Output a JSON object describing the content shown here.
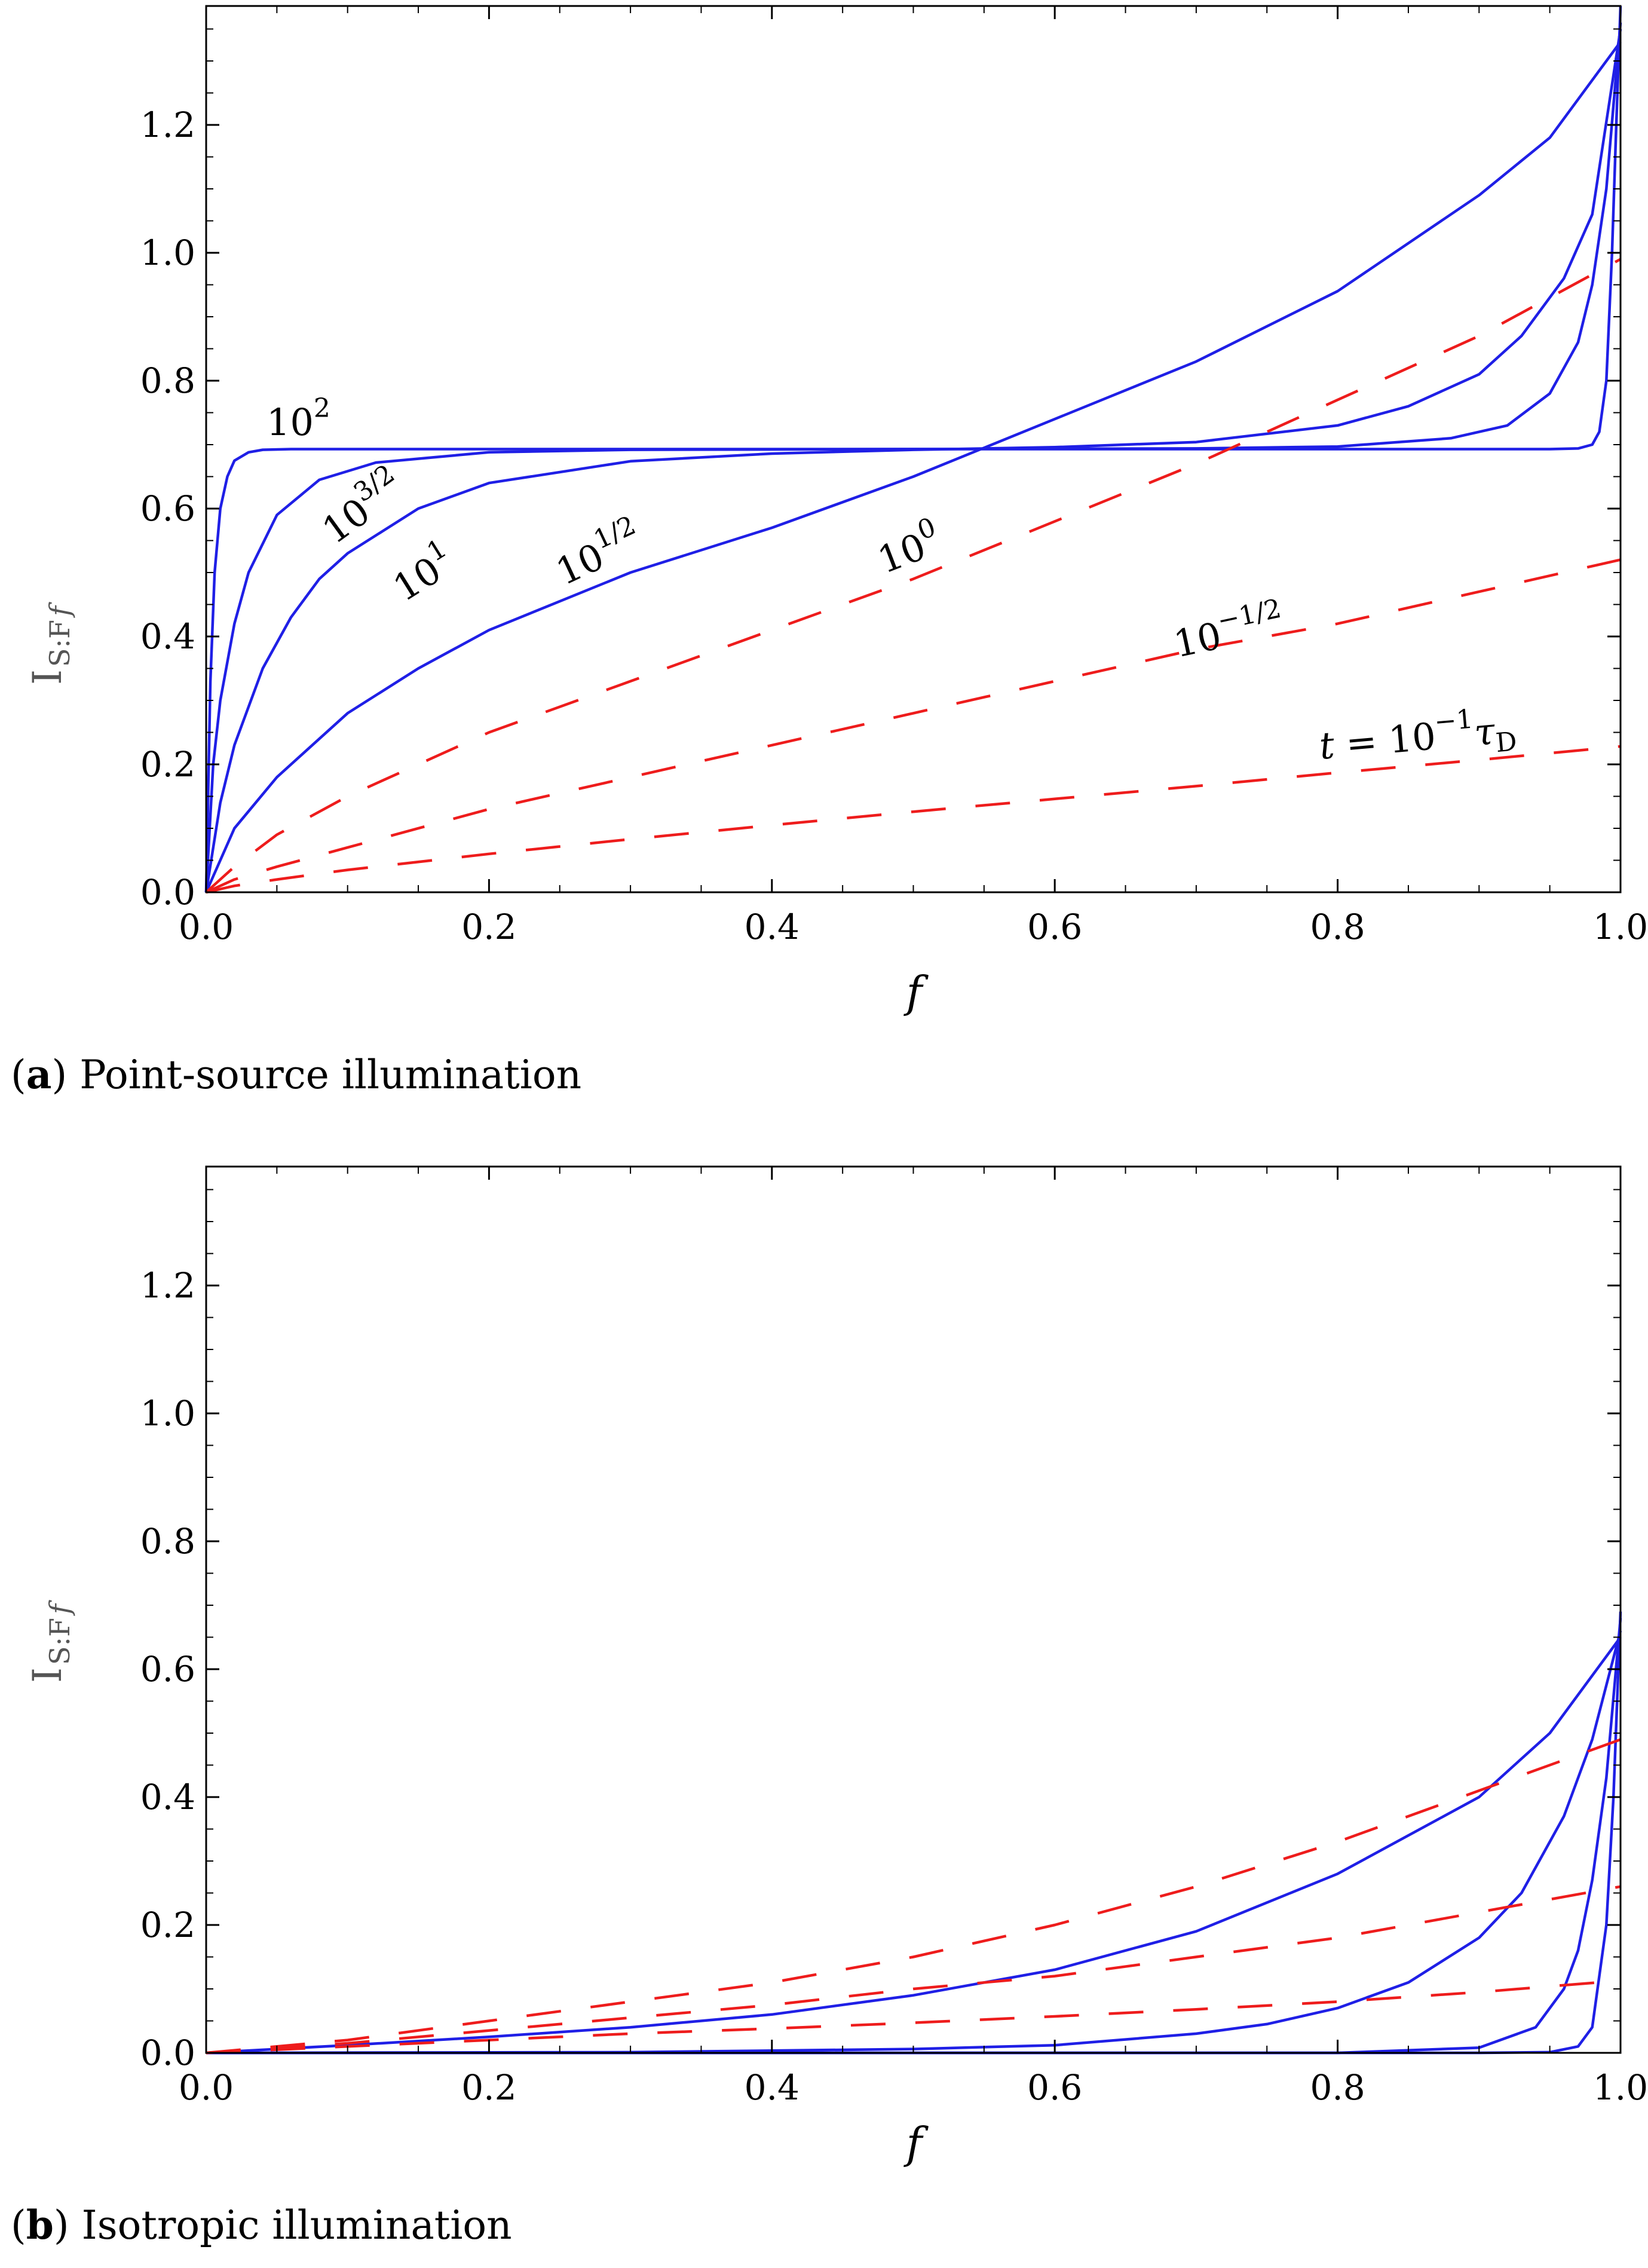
{
  "colors": {
    "blue_series": "#1f1fe6",
    "red_series": "#ee1c1c",
    "axis": "#000000"
  },
  "chart_data": [
    {
      "type": "line",
      "caption": {
        "open": "(",
        "label": "a",
        "close": ")",
        "text": " Point-source illumination"
      },
      "xlabel": "f",
      "ylabel": {
        "main": "I",
        "sub": "S:F",
        "subvar": "f"
      },
      "xlim": [
        0.0,
        1.0
      ],
      "ylim": [
        0.0,
        1.386
      ],
      "xticks": [
        "0.0",
        "0.2",
        "0.4",
        "0.6",
        "0.8",
        "1.0"
      ],
      "yticks": [
        "0.0",
        "0.2",
        "0.4",
        "0.6",
        "0.8",
        "1.0",
        "1.2"
      ],
      "series": [
        {
          "name": "t = 10^2 τD",
          "style": "solid",
          "color": "blue",
          "x": [
            0,
            0.003,
            0.006,
            0.01,
            0.015,
            0.02,
            0.03,
            0.04,
            0.06,
            0.1,
            0.5,
            0.9,
            0.95,
            0.97,
            0.98,
            0.985,
            0.99,
            0.994,
            0.997,
            1.0
          ],
          "y": [
            0,
            0.33,
            0.5,
            0.6,
            0.65,
            0.675,
            0.688,
            0.692,
            0.693,
            0.693,
            0.693,
            0.693,
            0.693,
            0.694,
            0.7,
            0.72,
            0.8,
            1.0,
            1.2,
            1.386
          ]
        },
        {
          "name": "t = 10^(3/2) τD",
          "style": "solid",
          "color": "blue",
          "x": [
            0,
            0.005,
            0.01,
            0.02,
            0.03,
            0.05,
            0.08,
            0.12,
            0.2,
            0.3,
            0.5,
            0.7,
            0.8,
            0.88,
            0.92,
            0.95,
            0.97,
            0.98,
            0.99,
            1.0
          ],
          "y": [
            0,
            0.2,
            0.3,
            0.42,
            0.5,
            0.59,
            0.645,
            0.672,
            0.688,
            0.692,
            0.693,
            0.694,
            0.697,
            0.71,
            0.73,
            0.78,
            0.86,
            0.95,
            1.1,
            1.36
          ]
        },
        {
          "name": "t = 10^1 τD",
          "style": "solid",
          "color": "blue",
          "x": [
            0,
            0.01,
            0.02,
            0.04,
            0.06,
            0.08,
            0.1,
            0.15,
            0.2,
            0.3,
            0.4,
            0.5,
            0.6,
            0.7,
            0.8,
            0.85,
            0.9,
            0.93,
            0.96,
            0.98,
            1.0
          ],
          "y": [
            0,
            0.14,
            0.23,
            0.35,
            0.43,
            0.49,
            0.53,
            0.6,
            0.64,
            0.674,
            0.686,
            0.692,
            0.696,
            0.704,
            0.73,
            0.76,
            0.81,
            0.87,
            0.96,
            1.06,
            1.35
          ]
        },
        {
          "name": "t = 10^(1/2) τD",
          "style": "solid",
          "color": "blue",
          "x": [
            0,
            0.02,
            0.05,
            0.1,
            0.15,
            0.2,
            0.3,
            0.4,
            0.5,
            0.6,
            0.7,
            0.8,
            0.9,
            0.95,
            1.0
          ],
          "y": [
            0,
            0.1,
            0.18,
            0.28,
            0.35,
            0.41,
            0.5,
            0.57,
            0.65,
            0.74,
            0.83,
            0.94,
            1.09,
            1.18,
            1.33
          ]
        },
        {
          "name": "t = 10^0 τD",
          "style": "dashed",
          "color": "red",
          "x": [
            0,
            0.02,
            0.05,
            0.1,
            0.2,
            0.3,
            0.4,
            0.5,
            0.6,
            0.7,
            0.8,
            0.9,
            1.0
          ],
          "y": [
            0,
            0.04,
            0.09,
            0.15,
            0.25,
            0.33,
            0.41,
            0.49,
            0.58,
            0.67,
            0.77,
            0.87,
            0.99
          ]
        },
        {
          "name": "t = 10^(-1/2) τD",
          "style": "dashed",
          "color": "red",
          "x": [
            0,
            0.02,
            0.05,
            0.1,
            0.2,
            0.3,
            0.4,
            0.5,
            0.6,
            0.7,
            0.8,
            0.9,
            1.0
          ],
          "y": [
            0,
            0.02,
            0.04,
            0.07,
            0.13,
            0.18,
            0.23,
            0.28,
            0.33,
            0.38,
            0.42,
            0.47,
            0.52
          ]
        },
        {
          "name": "t = 10^-1 τD",
          "style": "dashed",
          "color": "red",
          "x": [
            0,
            0.02,
            0.05,
            0.1,
            0.2,
            0.3,
            0.4,
            0.5,
            0.6,
            0.7,
            0.8,
            0.9,
            1.0
          ],
          "y": [
            0,
            0.01,
            0.02,
            0.035,
            0.06,
            0.083,
            0.105,
            0.126,
            0.146,
            0.166,
            0.187,
            0.207,
            0.228
          ]
        }
      ],
      "annotations": [
        {
          "base": "10",
          "sup": "2"
        },
        {
          "base": "10",
          "sup": "3/2"
        },
        {
          "base": "10",
          "sup": "1"
        },
        {
          "base": "10",
          "sup": "1/2"
        },
        {
          "base": "10",
          "sup": "0"
        },
        {
          "base": "10",
          "sup": "−1/2"
        },
        {
          "pre": "t",
          "eq": " = 10",
          "sup": "−1",
          "tau": "τ",
          "tausub": "D"
        }
      ]
    },
    {
      "type": "line",
      "caption": {
        "open": "(",
        "label": "b",
        "close": ")",
        "text": " Isotropic illumination"
      },
      "xlabel": "f",
      "ylabel": {
        "main": "I",
        "sub": "S:F",
        "subvar": "f"
      },
      "xlim": [
        0.0,
        1.0
      ],
      "ylim": [
        0.0,
        1.386
      ],
      "xticks": [
        "0.0",
        "0.2",
        "0.4",
        "0.6",
        "0.8",
        "1.0"
      ],
      "yticks": [
        "0.0",
        "0.2",
        "0.4",
        "0.6",
        "0.8",
        "1.0",
        "1.2"
      ],
      "series": [
        {
          "name": "t = 10^2 τD",
          "style": "solid",
          "color": "blue",
          "x": [
            0,
            0.9,
            0.95,
            0.97,
            0.98,
            0.99,
            0.995,
            1.0
          ],
          "y": [
            0,
            0.0,
            0.001,
            0.01,
            0.04,
            0.2,
            0.4,
            0.69
          ]
        },
        {
          "name": "t = 10^(3/2) τD",
          "style": "solid",
          "color": "blue",
          "x": [
            0,
            0.8,
            0.9,
            0.94,
            0.96,
            0.97,
            0.98,
            0.99,
            1.0
          ],
          "y": [
            0,
            0.0,
            0.008,
            0.04,
            0.1,
            0.16,
            0.27,
            0.43,
            0.68
          ]
        },
        {
          "name": "t = 10^1 τD",
          "style": "solid",
          "color": "blue",
          "x": [
            0,
            0.3,
            0.5,
            0.6,
            0.7,
            0.75,
            0.8,
            0.85,
            0.9,
            0.93,
            0.96,
            0.98,
            1.0
          ],
          "y": [
            0,
            0.001,
            0.006,
            0.012,
            0.03,
            0.045,
            0.07,
            0.11,
            0.18,
            0.25,
            0.37,
            0.49,
            0.66
          ]
        },
        {
          "name": "t = 10^(1/2) τD",
          "style": "solid",
          "color": "blue",
          "x": [
            0,
            0.1,
            0.2,
            0.3,
            0.4,
            0.5,
            0.6,
            0.7,
            0.8,
            0.9,
            0.95,
            1.0
          ],
          "y": [
            0,
            0.012,
            0.025,
            0.04,
            0.06,
            0.09,
            0.13,
            0.19,
            0.28,
            0.4,
            0.5,
            0.65
          ]
        },
        {
          "name": "t = 10^0 τD",
          "style": "dashed",
          "color": "red",
          "x": [
            0,
            0.1,
            0.2,
            0.3,
            0.4,
            0.5,
            0.6,
            0.7,
            0.8,
            0.9,
            1.0
          ],
          "y": [
            0,
            0.02,
            0.05,
            0.08,
            0.11,
            0.15,
            0.2,
            0.26,
            0.33,
            0.41,
            0.49
          ]
        },
        {
          "name": "t = 10^(-1/2) τD",
          "style": "dashed",
          "color": "red",
          "x": [
            0,
            0.1,
            0.2,
            0.3,
            0.4,
            0.5,
            0.6,
            0.7,
            0.8,
            0.9,
            1.0
          ],
          "y": [
            0,
            0.015,
            0.035,
            0.055,
            0.075,
            0.1,
            0.12,
            0.15,
            0.18,
            0.22,
            0.26
          ]
        },
        {
          "name": "t = 10^-1 τD",
          "style": "dashed",
          "color": "red",
          "x": [
            0,
            0.1,
            0.2,
            0.3,
            0.4,
            0.5,
            0.6,
            0.7,
            0.8,
            0.9,
            1.0
          ],
          "y": [
            0,
            0.01,
            0.02,
            0.03,
            0.038,
            0.047,
            0.057,
            0.068,
            0.08,
            0.095,
            0.113
          ]
        }
      ]
    }
  ]
}
